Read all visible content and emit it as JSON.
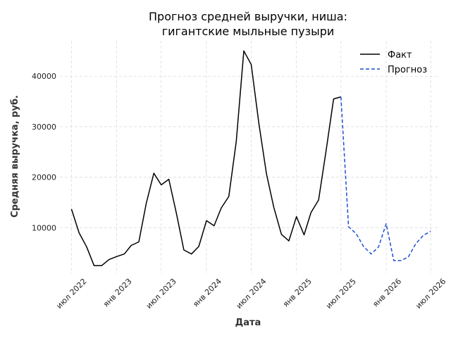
{
  "chart_data": {
    "type": "line",
    "title": [
      "Прогноз средней выручки, ниша:",
      "гигантские мыльные пузыри"
    ],
    "xlabel": "Дата",
    "ylabel": "Средняя выручка, руб.",
    "ylim": [
      1000,
      47000
    ],
    "yticks": [
      10000,
      20000,
      30000,
      40000
    ],
    "xlim": [
      "2022-05-15",
      "2026-08-01"
    ],
    "xticks": [
      {
        "date": "2022-07-01",
        "label": "июл 2022"
      },
      {
        "date": "2023-01-01",
        "label": "янв 2023"
      },
      {
        "date": "2023-07-01",
        "label": "июл 2023"
      },
      {
        "date": "2024-01-01",
        "label": "янв 2024"
      },
      {
        "date": "2024-07-01",
        "label": "июл 2024"
      },
      {
        "date": "2025-01-01",
        "label": "янв 2025"
      },
      {
        "date": "2025-07-01",
        "label": "июл 2025"
      },
      {
        "date": "2026-01-01",
        "label": "янв 2026"
      },
      {
        "date": "2026-07-01",
        "label": "июл 2026"
      }
    ],
    "grid": true,
    "legend_position": "top-right",
    "series": [
      {
        "name": "Факт",
        "color": "#000000",
        "style": "solid",
        "points": [
          [
            "2022-07-01",
            13700
          ],
          [
            "2022-08-01",
            9000
          ],
          [
            "2022-09-01",
            6200
          ],
          [
            "2022-10-01",
            2500
          ],
          [
            "2022-11-01",
            2500
          ],
          [
            "2022-12-01",
            3700
          ],
          [
            "2023-01-01",
            4300
          ],
          [
            "2023-02-01",
            4800
          ],
          [
            "2023-03-01",
            6500
          ],
          [
            "2023-04-01",
            7200
          ],
          [
            "2023-05-01",
            14800
          ],
          [
            "2023-06-01",
            20800
          ],
          [
            "2023-07-01",
            18500
          ],
          [
            "2023-08-01",
            19600
          ],
          [
            "2023-09-01",
            12800
          ],
          [
            "2023-10-01",
            5600
          ],
          [
            "2023-11-01",
            4800
          ],
          [
            "2023-12-01",
            6300
          ],
          [
            "2024-01-01",
            11400
          ],
          [
            "2024-02-01",
            10400
          ],
          [
            "2024-03-01",
            13900
          ],
          [
            "2024-04-01",
            16200
          ],
          [
            "2024-05-01",
            27000
          ],
          [
            "2024-06-01",
            45000
          ],
          [
            "2024-07-01",
            42300
          ],
          [
            "2024-08-01",
            30700
          ],
          [
            "2024-09-01",
            20700
          ],
          [
            "2024-10-01",
            14000
          ],
          [
            "2024-11-01",
            8700
          ],
          [
            "2024-12-01",
            7400
          ],
          [
            "2025-01-01",
            12200
          ],
          [
            "2025-02-01",
            8600
          ],
          [
            "2025-03-01",
            13000
          ],
          [
            "2025-04-01",
            15500
          ],
          [
            "2025-05-01",
            25000
          ],
          [
            "2025-06-01",
            35500
          ],
          [
            "2025-07-01",
            35900
          ]
        ]
      },
      {
        "name": "Прогноз",
        "color": "#1f4fd1",
        "style": "dashed",
        "points": [
          [
            "2025-07-01",
            35900
          ],
          [
            "2025-08-01",
            10200
          ],
          [
            "2025-09-01",
            8800
          ],
          [
            "2025-10-01",
            6300
          ],
          [
            "2025-11-01",
            4800
          ],
          [
            "2025-12-01",
            6200
          ],
          [
            "2026-01-01",
            10800
          ],
          [
            "2026-02-01",
            3500
          ],
          [
            "2026-03-01",
            3500
          ],
          [
            "2026-04-01",
            4200
          ],
          [
            "2026-05-01",
            6800
          ],
          [
            "2026-06-01",
            8500
          ],
          [
            "2026-07-01",
            9300
          ]
        ]
      }
    ]
  }
}
